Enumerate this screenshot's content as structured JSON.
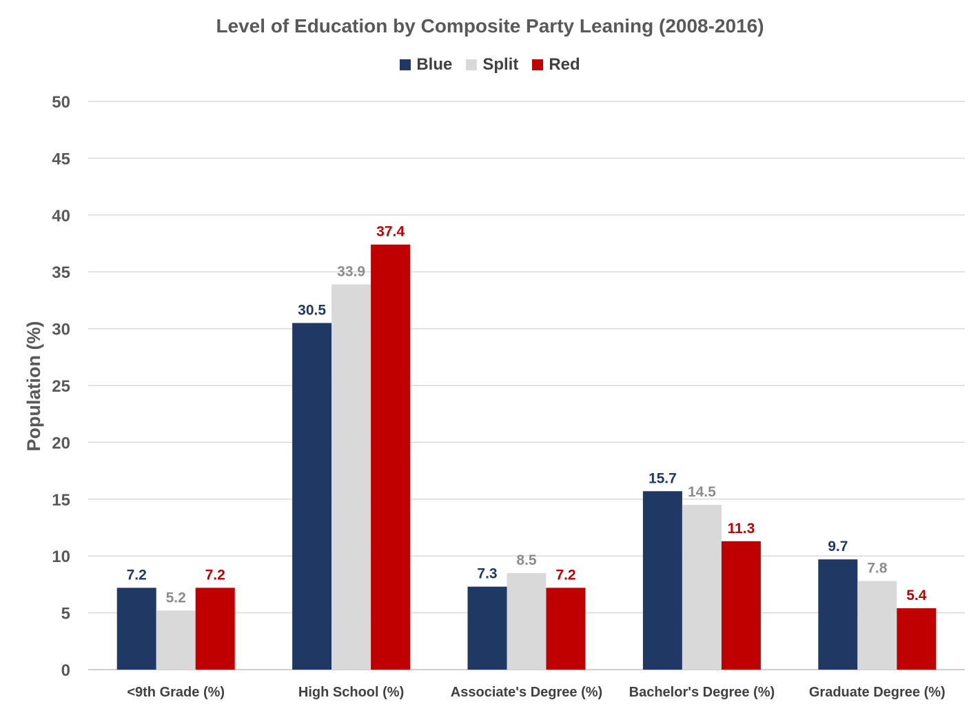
{
  "chart_data": {
    "type": "bar",
    "title": "Level of Education by Composite Party Leaning (2008-2016)",
    "xlabel": "",
    "ylabel": "Population (%)",
    "ylim": [
      0,
      50
    ],
    "yticks": [
      0,
      5,
      10,
      15,
      20,
      25,
      30,
      35,
      40,
      45,
      50
    ],
    "grid": true,
    "legend": "top-center",
    "categories": [
      "<9th Grade (%)",
      "High School (%)",
      "Associate's Degree (%)",
      "Bachelor's Degree (%)",
      "Graduate Degree (%)"
    ],
    "series": [
      {
        "name": "Blue",
        "color": "#1F3864",
        "label_color": "#1F3864",
        "values": [
          7.2,
          30.5,
          7.3,
          15.7,
          9.7
        ]
      },
      {
        "name": "Split",
        "color": "#D9D9D9",
        "label_color": "#8C8C8C",
        "values": [
          5.2,
          33.9,
          8.5,
          14.5,
          7.8
        ]
      },
      {
        "name": "Red",
        "color": "#C00000",
        "label_color": "#C00000",
        "values": [
          7.2,
          37.4,
          7.2,
          11.3,
          5.4
        ]
      }
    ]
  }
}
